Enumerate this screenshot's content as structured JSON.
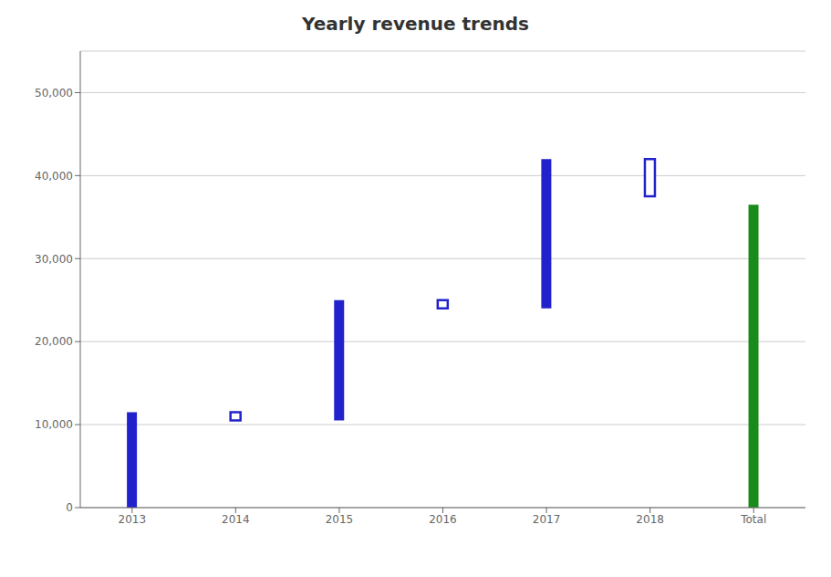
{
  "chart_data": {
    "type": "bar",
    "title": "Yearly revenue trends",
    "categories": [
      "2013",
      "2014",
      "2015",
      "2016",
      "2017",
      "2018",
      "Total"
    ],
    "values": [
      [
        0,
        11500
      ],
      [
        10500,
        11500
      ],
      [
        10500,
        25000
      ],
      [
        24000,
        25000
      ],
      [
        24000,
        42000
      ],
      [
        37500,
        42000
      ],
      [
        0,
        36500
      ]
    ],
    "filled": [
      true,
      false,
      true,
      false,
      true,
      false,
      true
    ],
    "colors": [
      "#2222CC",
      "#2222CC",
      "#2222CC",
      "#2222CC",
      "#2222CC",
      "#2222CC",
      "#1a8a1a"
    ],
    "ylim": [
      0,
      55000
    ],
    "yticks": [
      0,
      {
        "value": 10000,
        "label": "10,000"
      },
      {
        "value": 20000,
        "label": "20,000"
      },
      {
        "value": 30000,
        "label": "30,000"
      },
      {
        "value": 40000,
        "label": "40,000"
      },
      {
        "value": 50000,
        "label": "50,000"
      }
    ],
    "grid": true
  }
}
